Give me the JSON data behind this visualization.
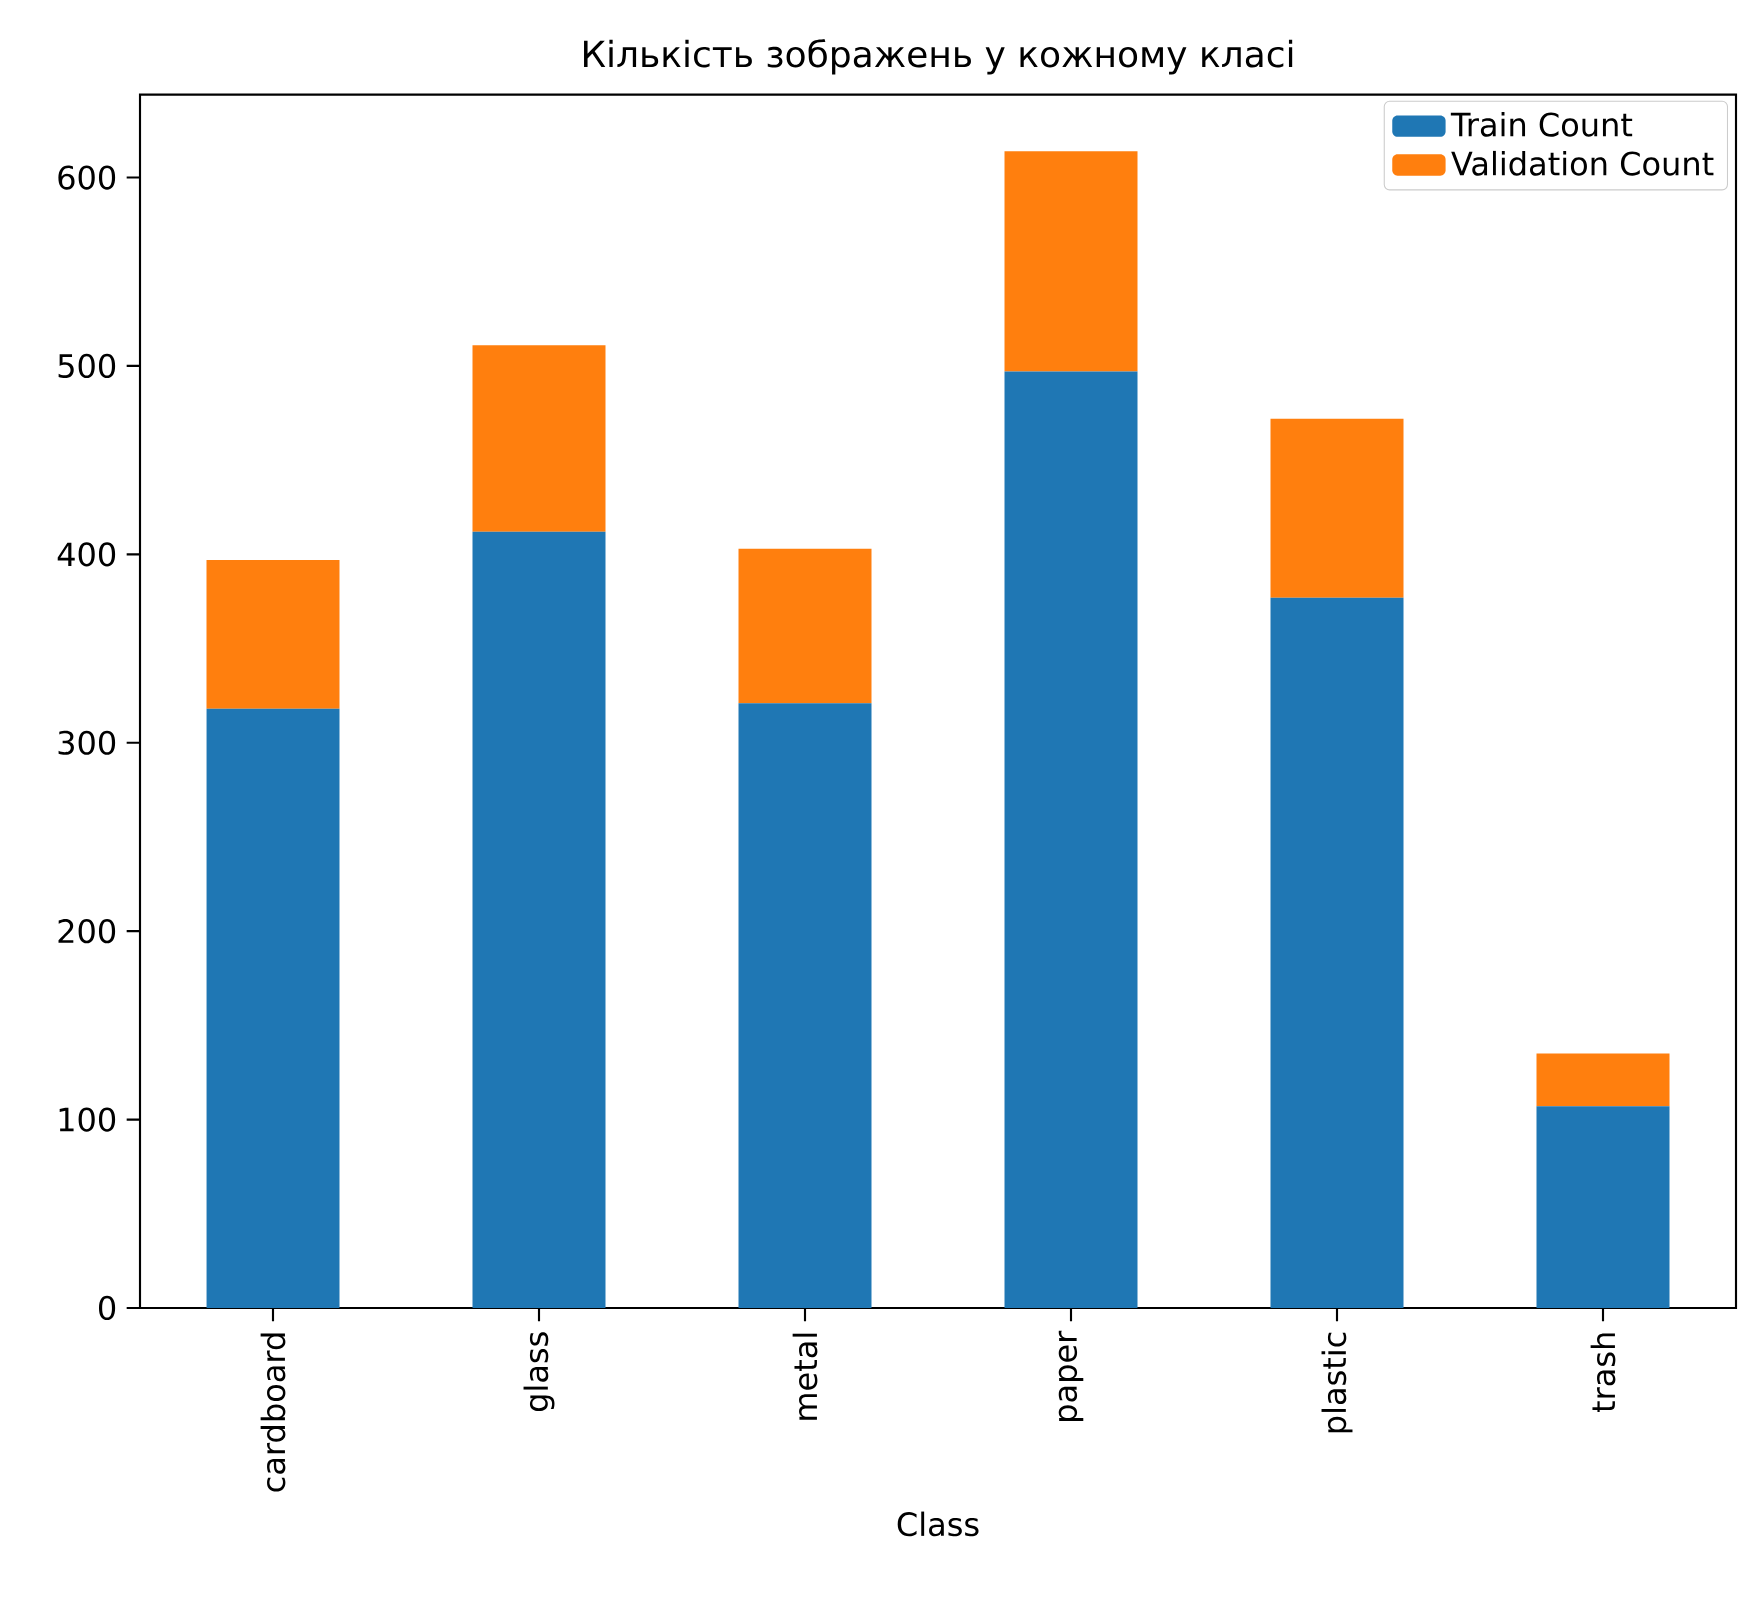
{
  "chart_data": {
    "type": "bar",
    "stacked": true,
    "title": "Кількість зображень у кожному класі",
    "xlabel": "Class",
    "categories": [
      "cardboard",
      "glass",
      "metal",
      "paper",
      "plastic",
      "trash"
    ],
    "series": [
      {
        "name": "Train Count",
        "color": "#1f77b4",
        "values": [
          318,
          412,
          321,
          497,
          377,
          107
        ]
      },
      {
        "name": "Validation Count",
        "color": "#ff7f0e",
        "values": [
          79,
          99,
          82,
          117,
          95,
          28
        ]
      }
    ],
    "ylim": [
      0,
      644
    ],
    "yticks": [
      0,
      100,
      200,
      300,
      400,
      500,
      600
    ],
    "legend": "top right",
    "grid": false
  }
}
